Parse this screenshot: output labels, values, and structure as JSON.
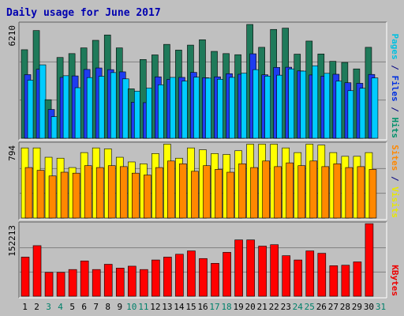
{
  "chart_data": {
    "type": "bar",
    "title": "Daily usage for June 2017",
    "x": [
      "1",
      "2",
      "3",
      "4",
      "5",
      "6",
      "7",
      "8",
      "9",
      "10",
      "11",
      "12",
      "13",
      "14",
      "15",
      "16",
      "17",
      "18",
      "19",
      "20",
      "21",
      "22",
      "23",
      "24",
      "25",
      "26",
      "27",
      "28",
      "29",
      "30",
      "31"
    ],
    "weekend_days": [
      "3",
      "4",
      "10",
      "11",
      "17",
      "18",
      "24",
      "25",
      "31"
    ],
    "panels": [
      {
        "id": "hits-panel",
        "max_label": "6210",
        "ymax": 6210,
        "right_labels": [
          {
            "text": "Pages",
            "color": "#00c0e0"
          },
          {
            "text": " / ",
            "color": "#000080"
          },
          {
            "text": "Files",
            "color": "#0030e0"
          },
          {
            "text": " / ",
            "color": "#000080"
          },
          {
            "text": "Hits",
            "color": "#00906a"
          }
        ],
        "series": [
          {
            "name": "Hits",
            "color": "#1f7a5a",
            "values": [
              4800,
              5840,
              2090,
              4380,
              4590,
              4900,
              5310,
              5600,
              4900,
              2680,
              4270,
              4520,
              5090,
              4780,
              5050,
              5340,
              4710,
              4590,
              4530,
              6170,
              4930,
              5900,
              5970,
              4560,
              5270,
              4570,
              4170,
              4110,
              3760,
              4930,
              null
            ]
          },
          {
            "name": "Files",
            "color": "#1e3cf0",
            "values": [
              3450,
              3740,
              1560,
              3300,
              3380,
              3730,
              3810,
              3720,
              3600,
              1950,
              1930,
              3330,
              3190,
              3300,
              3570,
              3280,
              3330,
              3500,
              3470,
              4580,
              3440,
              3840,
              3850,
              3650,
              3430,
              3370,
              3470,
              3010,
              2980,
              3460,
              null
            ]
          },
          {
            "name": "Pages",
            "color": "#00ccff",
            "values": [
              3150,
              3980,
              1170,
              3390,
              2740,
              3290,
              3360,
              3560,
              3220,
              2550,
              2720,
              2900,
              3300,
              3100,
              3310,
              3260,
              3200,
              3300,
              3530,
              3720,
              3370,
              3420,
              3760,
              3640,
              3930,
              3520,
              3100,
              2580,
              2710,
              3270,
              null
            ]
          }
        ]
      },
      {
        "id": "visits-panel",
        "max_label": "794",
        "ymax": 794,
        "right_labels": [
          {
            "text": "Sites",
            "color": "#ff8800"
          },
          {
            "text": " / ",
            "color": "#000080"
          },
          {
            "text": "Visits",
            "color": "#e8e800"
          }
        ],
        "series": [
          {
            "name": "Visits",
            "color": "#ffff00",
            "values": [
              750,
              750,
              650,
              640,
              540,
              700,
              750,
              740,
              650,
              600,
              580,
              690,
              790,
              640,
              750,
              730,
              690,
              680,
              720,
              790,
              790,
              790,
              750,
              700,
              790,
              780,
              700,
              660,
              660,
              700,
              null
            ]
          },
          {
            "name": "Sites",
            "color": "#ff8800",
            "values": [
              540,
              510,
              450,
              490,
              480,
              560,
              540,
              560,
              550,
              480,
              460,
              540,
              610,
              580,
              500,
              560,
              520,
              490,
              580,
              540,
              610,
              550,
              590,
              560,
              610,
              550,
              580,
              540,
              550,
              520,
              null
            ]
          }
        ]
      },
      {
        "id": "kbytes-panel",
        "max_label": "152213",
        "ymax": 152213,
        "right_labels": [
          {
            "text": "KBytes",
            "color": "#ee0000"
          }
        ],
        "series": [
          {
            "name": "KBytes",
            "color": "#ff0000",
            "values": [
              82000,
              106000,
              50000,
              50000,
              56000,
              74000,
              56000,
              67000,
              59000,
              63000,
              56000,
              76000,
              82000,
              88000,
              95000,
              79000,
              69000,
              92000,
              118000,
              118000,
              105000,
              108000,
              85000,
              76000,
              95000,
              90000,
              64000,
              65000,
              72000,
              152000,
              null
            ]
          }
        ]
      }
    ]
  }
}
